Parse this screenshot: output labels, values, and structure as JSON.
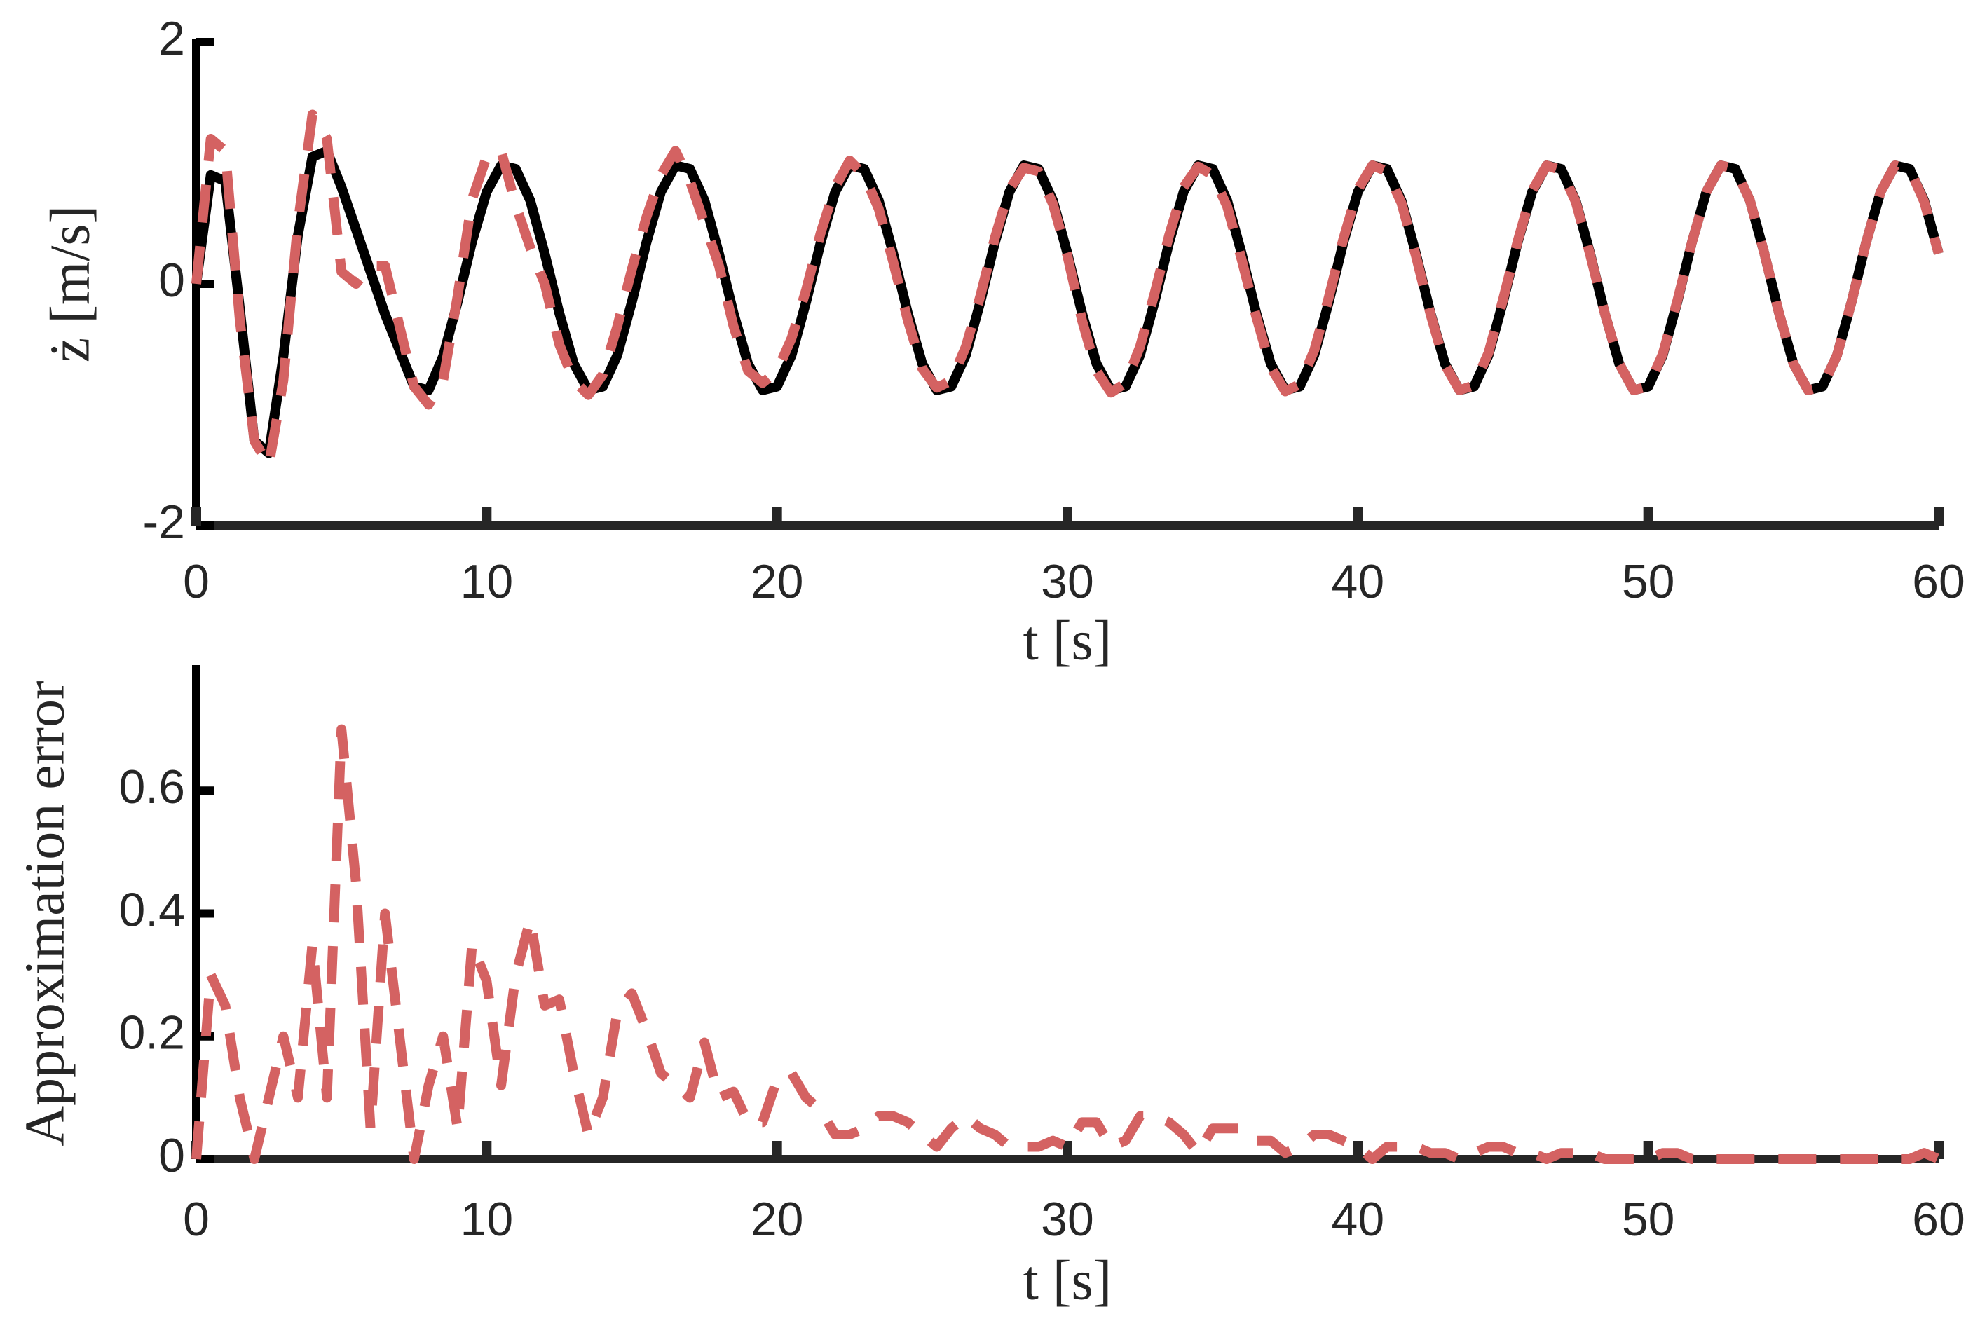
{
  "chart_data": [
    {
      "type": "line",
      "xlabel": "t [s]",
      "ylabel": "ż [m/s]",
      "x": [
        0,
        0.5,
        1,
        1.5,
        2,
        2.5,
        3,
        3.5,
        4,
        4.5,
        5,
        5.5,
        6,
        6.5,
        7,
        7.5,
        8,
        8.5,
        9,
        9.5,
        10,
        10.5,
        11,
        11.5,
        12,
        12.5,
        13,
        13.5,
        14,
        14.5,
        15,
        15.5,
        16,
        16.5,
        17,
        17.5,
        18,
        18.5,
        19,
        19.5,
        20,
        20.5,
        21,
        21.5,
        22,
        22.5,
        23,
        23.5,
        24,
        24.5,
        25,
        25.5,
        26,
        26.5,
        27,
        27.5,
        28,
        28.5,
        29,
        29.5,
        30,
        30.5,
        31,
        31.5,
        32,
        32.5,
        33,
        33.5,
        34,
        34.5,
        35,
        35.5,
        36,
        36.5,
        37,
        37.5,
        38,
        38.5,
        39,
        39.5,
        40,
        40.5,
        41,
        41.5,
        42,
        42.5,
        43,
        43.5,
        44,
        44.5,
        45,
        45.5,
        46,
        46.5,
        47,
        47.5,
        48,
        48.5,
        49,
        49.5,
        50,
        50.5,
        51,
        51.5,
        52,
        52.5,
        53,
        53.5,
        54,
        54.5,
        55,
        55.5,
        56,
        56.5,
        57,
        57.5,
        58,
        58.5,
        59,
        59.5,
        60
      ],
      "series": [
        {
          "color": "#000000",
          "dash": false,
          "values": [
            0,
            0.9,
            0.85,
            -0.2,
            -1.3,
            -1.4,
            -0.6,
            0.4,
            1.05,
            1.1,
            0.8,
            0.45,
            0.1,
            -0.25,
            -0.55,
            -0.85,
            -0.88,
            -0.6,
            -0.15,
            0.35,
            0.76,
            0.98,
            0.95,
            0.69,
            0.25,
            -0.24,
            -0.66,
            -0.88,
            -0.85,
            -0.59,
            -0.15,
            0.34,
            0.76,
            0.98,
            0.95,
            0.69,
            0.25,
            -0.24,
            -0.66,
            -0.88,
            -0.85,
            -0.59,
            -0.15,
            0.34,
            0.76,
            0.98,
            0.95,
            0.69,
            0.25,
            -0.24,
            -0.66,
            -0.88,
            -0.85,
            -0.59,
            -0.15,
            0.34,
            0.76,
            0.98,
            0.95,
            0.69,
            0.25,
            -0.24,
            -0.66,
            -0.88,
            -0.85,
            -0.59,
            -0.15,
            0.34,
            0.76,
            0.98,
            0.95,
            0.69,
            0.25,
            -0.24,
            -0.66,
            -0.88,
            -0.85,
            -0.59,
            -0.15,
            0.34,
            0.76,
            0.98,
            0.95,
            0.69,
            0.25,
            -0.24,
            -0.66,
            -0.88,
            -0.85,
            -0.59,
            -0.15,
            0.34,
            0.76,
            0.98,
            0.95,
            0.69,
            0.25,
            -0.24,
            -0.66,
            -0.88,
            -0.85,
            -0.59,
            -0.15,
            0.34,
            0.76,
            0.98,
            0.95,
            0.69,
            0.25,
            -0.24,
            -0.66,
            -0.88,
            -0.85,
            -0.59,
            -0.15,
            0.34,
            0.76,
            0.98,
            0.95,
            0.69,
            0.25
          ]
        },
        {
          "color": "#d46262",
          "dash": true,
          "values": [
            0,
            1.2,
            1.1,
            -0.3,
            -1.3,
            -1.5,
            -0.8,
            0.5,
            1.4,
            1.2,
            0.1,
            0,
            0.15,
            0.15,
            -0.35,
            -0.85,
            -1.0,
            -0.8,
            -0.1,
            0.7,
            1.05,
            1.1,
            0.65,
            0.3,
            0,
            -0.5,
            -0.8,
            -0.92,
            -0.75,
            -0.35,
            0.12,
            0.55,
            0.9,
            1.1,
            0.85,
            0.5,
            0.15,
            -0.35,
            -0.72,
            -0.82,
            -0.72,
            -0.45,
            -0.05,
            0.42,
            0.8,
            1.02,
            0.9,
            0.62,
            0.18,
            -0.3,
            -0.7,
            -0.86,
            -0.8,
            -0.52,
            -0.1,
            0.38,
            0.78,
            0.96,
            0.93,
            0.66,
            0.23,
            -0.3,
            -0.72,
            -0.9,
            -0.82,
            -0.52,
            -0.08,
            0.4,
            0.8,
            0.97,
            0.9,
            0.64,
            0.2,
            -0.27,
            -0.69,
            -0.89,
            -0.83,
            -0.55,
            -0.11,
            0.37,
            0.78,
            0.98,
            0.93,
            0.67,
            0.23,
            -0.25,
            -0.67,
            -0.88,
            -0.84,
            -0.57,
            -0.13,
            0.35,
            0.77,
            0.98,
            0.94,
            0.68,
            0.24,
            -0.24,
            -0.66,
            -0.88,
            -0.85,
            -0.58,
            -0.14,
            0.34,
            0.76,
            0.98,
            0.95,
            0.69,
            0.25,
            -0.24,
            -0.66,
            -0.88,
            -0.85,
            -0.59,
            -0.15,
            0.34,
            0.76,
            0.98,
            0.95,
            0.68,
            0.25
          ]
        }
      ],
      "xlim": [
        0,
        60
      ],
      "ylim": [
        -2,
        2
      ],
      "xticks": [
        0,
        10,
        20,
        30,
        40,
        50,
        60
      ],
      "yticks": [
        -2,
        0,
        2
      ]
    },
    {
      "type": "line",
      "xlabel": "t [s]",
      "ylabel": "Approximation error",
      "x": [
        0,
        0.5,
        1,
        1.5,
        2,
        2.5,
        3,
        3.5,
        4,
        4.5,
        5,
        5.5,
        6,
        6.5,
        7,
        7.5,
        8,
        8.5,
        9,
        9.5,
        10,
        10.5,
        11,
        11.5,
        12,
        12.5,
        13,
        13.5,
        14,
        14.5,
        15,
        15.5,
        16,
        16.5,
        17,
        17.5,
        18,
        18.5,
        19,
        19.5,
        20,
        20.5,
        21,
        21.5,
        22,
        22.5,
        23,
        23.5,
        24,
        24.5,
        25,
        25.5,
        26,
        26.5,
        27,
        27.5,
        28,
        28.5,
        29,
        29.5,
        30,
        30.5,
        31,
        31.5,
        32,
        32.5,
        33,
        33.5,
        34,
        34.5,
        35,
        35.5,
        36,
        36.5,
        37,
        37.5,
        38,
        38.5,
        39,
        39.5,
        40,
        40.5,
        41,
        41.5,
        42,
        42.5,
        43,
        43.5,
        44,
        44.5,
        45,
        45.5,
        46,
        46.5,
        47,
        47.5,
        48,
        48.5,
        49,
        49.5,
        50,
        50.5,
        51,
        51.5,
        52,
        52.5,
        53,
        53.5,
        54,
        54.5,
        55,
        55.5,
        56,
        56.5,
        57,
        57.5,
        58,
        58.5,
        59,
        59.5,
        60
      ],
      "series": [
        {
          "color": "#d46262",
          "dash": true,
          "values": [
            0,
            0.3,
            0.25,
            0.1,
            0,
            0.1,
            0.2,
            0.1,
            0.35,
            0.1,
            0.7,
            0.45,
            0.05,
            0.4,
            0.2,
            0,
            0.12,
            0.2,
            0.05,
            0.35,
            0.29,
            0.12,
            0.3,
            0.39,
            0.25,
            0.26,
            0.14,
            0.04,
            0.1,
            0.24,
            0.27,
            0.21,
            0.14,
            0.12,
            0.1,
            0.19,
            0.1,
            0.11,
            0.06,
            0.06,
            0.13,
            0.14,
            0.1,
            0.08,
            0.04,
            0.04,
            0.05,
            0.07,
            0.07,
            0.06,
            0.04,
            0.02,
            0.05,
            0.07,
            0.05,
            0.04,
            0.02,
            0.02,
            0.02,
            0.03,
            0.02,
            0.06,
            0.06,
            0.02,
            0.03,
            0.07,
            0.07,
            0.06,
            0.04,
            0.01,
            0.05,
            0.05,
            0.05,
            0.03,
            0.03,
            0.01,
            0.02,
            0.04,
            0.04,
            0.03,
            0.02,
            0,
            0.02,
            0.02,
            0.02,
            0.01,
            0.01,
            0,
            0.01,
            0.02,
            0.02,
            0.01,
            0.01,
            0,
            0.01,
            0.01,
            0.01,
            0,
            0,
            0,
            0,
            0.01,
            0.01,
            0,
            0,
            0,
            0,
            0,
            0,
            0,
            0,
            0,
            0,
            0,
            0,
            0,
            0,
            0,
            0,
            0.01,
            0
          ]
        }
      ],
      "xlim": [
        0,
        60
      ],
      "ylim": [
        0,
        0.8
      ],
      "xticks": [
        0,
        10,
        20,
        30,
        40,
        50,
        60
      ],
      "yticks": [
        0,
        0.2,
        0.4,
        0.6
      ]
    }
  ]
}
